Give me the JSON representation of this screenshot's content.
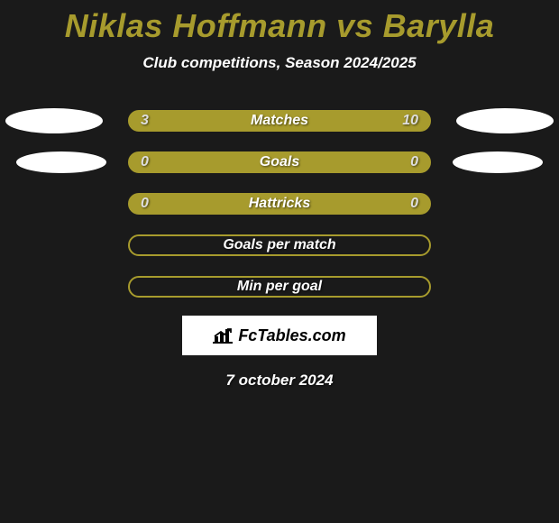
{
  "title": {
    "text": "Niklas Hoffmann vs Barylla",
    "color": "#a79b2d"
  },
  "subtitle": "Club competitions, Season 2024/2025",
  "colors": {
    "bar_fill": "#a79b2d",
    "bar_border": "#a79b2d",
    "value_text": "#dedede",
    "label_text": "#ffffff",
    "background": "#1a1a1a"
  },
  "rows": [
    {
      "label": "Matches",
      "left": "3",
      "right": "10",
      "filled": true,
      "show_left_ellipse": true,
      "show_right_ellipse": true,
      "ellipse_variant": "r1"
    },
    {
      "label": "Goals",
      "left": "0",
      "right": "0",
      "filled": true,
      "show_left_ellipse": true,
      "show_right_ellipse": true,
      "ellipse_variant": "r2"
    },
    {
      "label": "Hattricks",
      "left": "0",
      "right": "0",
      "filled": true,
      "show_left_ellipse": false,
      "show_right_ellipse": false,
      "ellipse_variant": ""
    },
    {
      "label": "Goals per match",
      "left": "",
      "right": "",
      "filled": false,
      "show_left_ellipse": false,
      "show_right_ellipse": false,
      "ellipse_variant": ""
    },
    {
      "label": "Min per goal",
      "left": "",
      "right": "",
      "filled": false,
      "show_left_ellipse": false,
      "show_right_ellipse": false,
      "ellipse_variant": ""
    }
  ],
  "branding": "FcTables.com",
  "date": "7 october 2024"
}
